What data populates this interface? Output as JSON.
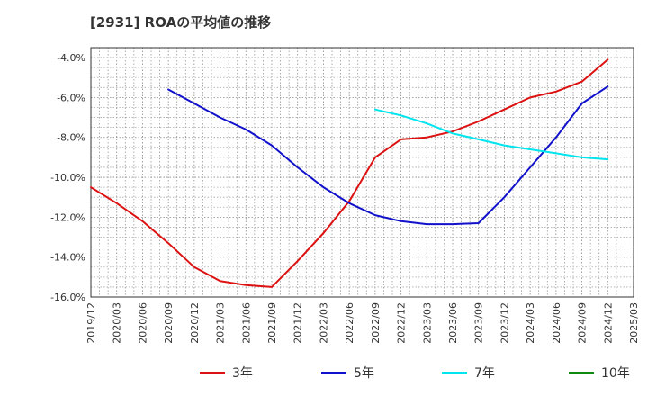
{
  "chart_data": {
    "type": "line",
    "title": "[2931]  ROAの平均値の推移",
    "xlabel": "",
    "ylabel": "",
    "ylim": [
      -16,
      -3.5
    ],
    "grid": true,
    "legend_position": "bottom",
    "y_ticks": [
      -4,
      -6,
      -8,
      -10,
      -12,
      -14,
      -16
    ],
    "y_tick_labels": [
      "-4.0%",
      "-6.0%",
      "-8.0%",
      "-10.0%",
      "-12.0%",
      "-14.0%",
      "-16.0%"
    ],
    "x_tick_labels": [
      "2019/12",
      "2020/03",
      "2020/06",
      "2020/09",
      "2020/12",
      "2021/03",
      "2021/06",
      "2021/09",
      "2021/12",
      "2022/03",
      "2022/06",
      "2022/09",
      "2022/12",
      "2023/03",
      "2023/06",
      "2023/09",
      "2023/12",
      "2024/03",
      "2024/06",
      "2024/09",
      "2024/12",
      "2025/03"
    ],
    "series": [
      {
        "name": "3年",
        "color": "#dd1111",
        "points": [
          [
            "2019/12",
            -10.5
          ],
          [
            "2020/03",
            -11.3
          ],
          [
            "2020/06",
            -12.2
          ],
          [
            "2020/09",
            -13.3
          ],
          [
            "2020/12",
            -14.5
          ],
          [
            "2021/03",
            -15.2
          ],
          [
            "2021/06",
            -15.4
          ],
          [
            "2021/09",
            -15.5
          ],
          [
            "2021/12",
            -14.2
          ],
          [
            "2022/03",
            -12.8
          ],
          [
            "2022/06",
            -11.2
          ],
          [
            "2022/09",
            -9.0
          ],
          [
            "2022/12",
            -8.1
          ],
          [
            "2023/03",
            -8.0
          ],
          [
            "2023/06",
            -7.7
          ],
          [
            "2023/09",
            -7.2
          ],
          [
            "2023/12",
            -6.6
          ],
          [
            "2024/03",
            -6.0
          ],
          [
            "2024/06",
            -5.7
          ],
          [
            "2024/09",
            -5.2
          ],
          [
            "2024/12",
            -4.1
          ]
        ]
      },
      {
        "name": "5年",
        "color": "#1111cc",
        "points": [
          [
            "2020/09",
            -5.6
          ],
          [
            "2020/12",
            -6.3
          ],
          [
            "2021/03",
            -7.0
          ],
          [
            "2021/06",
            -7.6
          ],
          [
            "2021/09",
            -8.4
          ],
          [
            "2021/12",
            -9.5
          ],
          [
            "2022/03",
            -10.5
          ],
          [
            "2022/06",
            -11.3
          ],
          [
            "2022/09",
            -11.9
          ],
          [
            "2022/12",
            -12.2
          ],
          [
            "2023/03",
            -12.35
          ],
          [
            "2023/06",
            -12.35
          ],
          [
            "2023/09",
            -12.3
          ],
          [
            "2023/12",
            -11.0
          ],
          [
            "2024/03",
            -9.5
          ],
          [
            "2024/06",
            -8.0
          ],
          [
            "2024/09",
            -6.3
          ],
          [
            "2024/12",
            -5.45
          ]
        ]
      },
      {
        "name": "7年",
        "color": "#00e5ee",
        "points": [
          [
            "2022/09",
            -6.6
          ],
          [
            "2022/12",
            -6.9
          ],
          [
            "2023/03",
            -7.3
          ],
          [
            "2023/06",
            -7.8
          ],
          [
            "2023/09",
            -8.1
          ],
          [
            "2023/12",
            -8.4
          ],
          [
            "2024/03",
            -8.6
          ],
          [
            "2024/06",
            -8.8
          ],
          [
            "2024/09",
            -9.0
          ],
          [
            "2024/12",
            -9.1
          ]
        ]
      },
      {
        "name": "10年",
        "color": "#118811",
        "points": []
      }
    ]
  }
}
